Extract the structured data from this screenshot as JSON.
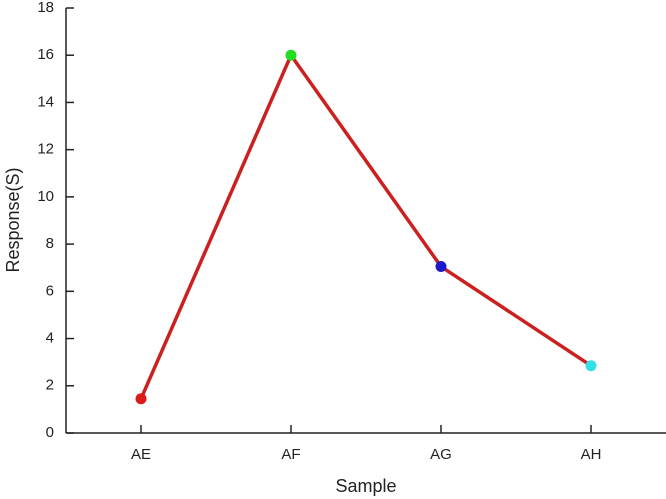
{
  "chart_data": {
    "type": "line",
    "x_label": "Sample",
    "y_label": "Response(S)",
    "categories": [
      "AE",
      "AF",
      "AG",
      "AH"
    ],
    "series": [
      {
        "values": [
          1.45,
          16,
          7.05,
          2.85
        ],
        "color": "#cc2020",
        "marker_colors": [
          "#dd1a1a",
          "#22dd22",
          "#1a1acc",
          "#33e0e6"
        ]
      }
    ],
    "ylim": [
      0,
      18
    ],
    "yticks": [
      0,
      2,
      4,
      6,
      8,
      10,
      12,
      14,
      16,
      18
    ],
    "grid": false
  }
}
